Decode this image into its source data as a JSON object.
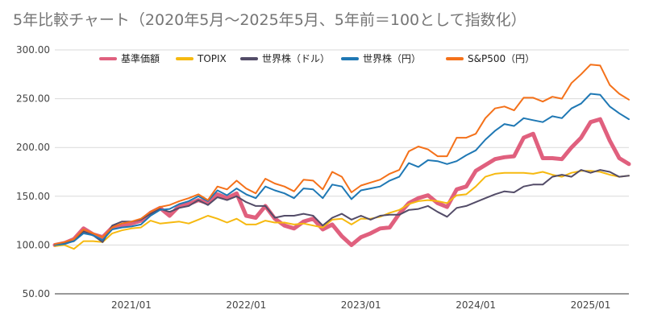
{
  "chart_data": {
    "type": "line",
    "title": "5年比較チャート（2020年5月～2025年5月、5年前＝100として指数化）",
    "xlabel": "",
    "ylabel": "",
    "x_range": [
      "2020-05",
      "2025-05"
    ],
    "ylim": [
      50,
      300
    ],
    "y_ticks": [
      "300.00",
      "250.00",
      "200.00",
      "150.00",
      "100.00",
      "50.00"
    ],
    "x_ticks": [
      {
        "label": "2021/01",
        "date": "2021-01"
      },
      {
        "label": "2022/01",
        "date": "2022-01"
      },
      {
        "label": "2023/01",
        "date": "2023-01"
      },
      {
        "label": "2024/01",
        "date": "2024-01"
      },
      {
        "label": "2025/01",
        "date": "2025-01"
      }
    ],
    "grid": true,
    "legend_position": "top",
    "x": [
      "2020-05",
      "2020-06",
      "2020-07",
      "2020-08",
      "2020-09",
      "2020-10",
      "2020-11",
      "2020-12",
      "2021-01",
      "2021-02",
      "2021-03",
      "2021-04",
      "2021-05",
      "2021-06",
      "2021-07",
      "2021-08",
      "2021-09",
      "2021-10",
      "2021-11",
      "2021-12",
      "2022-01",
      "2022-02",
      "2022-03",
      "2022-04",
      "2022-05",
      "2022-06",
      "2022-07",
      "2022-08",
      "2022-09",
      "2022-10",
      "2022-11",
      "2022-12",
      "2023-01",
      "2023-02",
      "2023-03",
      "2023-04",
      "2023-05",
      "2023-06",
      "2023-07",
      "2023-08",
      "2023-09",
      "2023-10",
      "2023-11",
      "2023-12",
      "2024-01",
      "2024-02",
      "2024-03",
      "2024-04",
      "2024-05",
      "2024-06",
      "2024-07",
      "2024-08",
      "2024-09",
      "2024-10",
      "2024-11",
      "2024-12",
      "2025-01",
      "2025-02",
      "2025-03",
      "2025-04",
      "2025-05"
    ],
    "series": [
      {
        "name": "基準価額",
        "color": "#e0607e",
        "width": 5,
        "values": [
          100,
          102,
          106,
          117,
          111,
          108,
          118,
          120,
          122,
          125,
          133,
          138,
          130,
          140,
          142,
          146,
          143,
          152,
          148,
          153,
          130,
          128,
          140,
          127,
          120,
          117,
          124,
          127,
          116,
          121,
          109,
          100,
          108,
          112,
          117,
          118,
          132,
          143,
          148,
          151,
          143,
          139,
          157,
          160,
          176,
          182,
          188,
          190,
          191,
          210,
          214,
          189,
          189,
          188,
          200,
          210,
          226,
          229,
          207,
          189,
          183
        ]
      },
      {
        "name": "TOPIX",
        "color": "#f6b910",
        "width": 2,
        "values": [
          99,
          100,
          96,
          104,
          104,
          103,
          112,
          115,
          117,
          118,
          125,
          122,
          123,
          124,
          122,
          126,
          130,
          127,
          123,
          127,
          121,
          121,
          125,
          123,
          123,
          121,
          122,
          120,
          118,
          126,
          127,
          121,
          127,
          127,
          129,
          133,
          136,
          142,
          145,
          146,
          145,
          143,
          151,
          152,
          160,
          170,
          173,
          174,
          174,
          174,
          173,
          175,
          172,
          170,
          174,
          176,
          176,
          175,
          172,
          170,
          171
        ]
      },
      {
        "name": "世界株（ドル）",
        "color": "#534c68",
        "width": 2,
        "values": [
          100,
          102,
          104,
          114,
          110,
          103,
          120,
          124,
          124,
          126,
          132,
          137,
          134,
          138,
          140,
          146,
          141,
          149,
          146,
          150,
          144,
          140,
          140,
          128,
          130,
          130,
          132,
          130,
          120,
          128,
          132,
          126,
          130,
          126,
          130,
          131,
          131,
          136,
          137,
          140,
          134,
          129,
          138,
          140,
          144,
          148,
          152,
          155,
          154,
          160,
          162,
          162,
          170,
          172,
          170,
          177,
          174,
          177,
          175,
          170,
          171
        ]
      },
      {
        "name": "世界株（円）",
        "color": "#1f78b4",
        "width": 2,
        "values": [
          100,
          101,
          104,
          112,
          110,
          105,
          116,
          118,
          119,
          121,
          130,
          136,
          137,
          142,
          145,
          150,
          145,
          156,
          151,
          158,
          152,
          148,
          160,
          156,
          153,
          148,
          158,
          157,
          148,
          162,
          160,
          147,
          156,
          158,
          160,
          166,
          170,
          184,
          180,
          187,
          186,
          183,
          186,
          192,
          197,
          208,
          217,
          224,
          222,
          230,
          228,
          226,
          232,
          230,
          240,
          245,
          255,
          254,
          242,
          235,
          229
        ]
      },
      {
        "name": "S&P500（円）",
        "color": "#f4711a",
        "width": 2,
        "values": [
          101,
          103,
          106,
          116,
          112,
          108,
          118,
          122,
          124,
          127,
          134,
          139,
          141,
          145,
          148,
          152,
          146,
          160,
          157,
          166,
          158,
          153,
          168,
          163,
          160,
          155,
          167,
          166,
          157,
          175,
          170,
          154,
          161,
          164,
          167,
          173,
          177,
          196,
          201,
          198,
          191,
          191,
          210,
          210,
          214,
          230,
          240,
          242,
          238,
          251,
          251,
          247,
          252,
          250,
          266,
          275,
          285,
          284,
          264,
          255,
          249
        ]
      }
    ]
  }
}
